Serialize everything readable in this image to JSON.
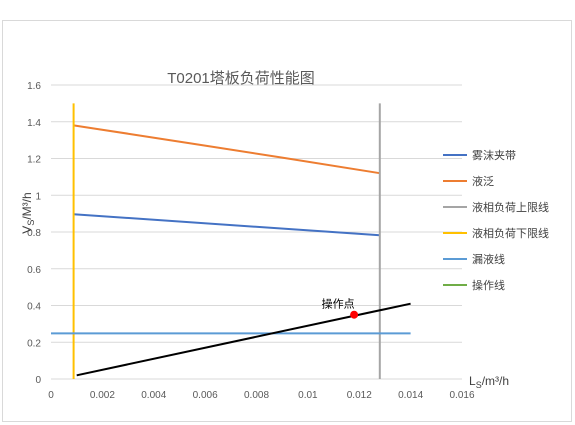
{
  "chart_data": {
    "type": "line",
    "title": "T0201塔板负荷性能图",
    "xlabel": {
      "main": "L",
      "sub": "S",
      "rest": "/m³/h"
    },
    "ylabel": {
      "main": "V",
      "sub": "S",
      "rest": "/M³/h"
    },
    "xlim": [
      0,
      0.016
    ],
    "ylim": [
      0,
      1.6
    ],
    "x_ticks": [
      "0",
      "0.002",
      "0.004",
      "0.006",
      "0.008",
      "0.01",
      "0.012",
      "0.014",
      "0.016"
    ],
    "y_ticks": [
      "0",
      "0.2",
      "0.4",
      "0.6",
      "0.8",
      "1",
      "1.2",
      "1.4",
      "1.6"
    ],
    "grid": "horizontal",
    "legend_position": "right",
    "series": [
      {
        "name": "雾沫夹带",
        "color": "#4472c4",
        "points": [
          [
            0.00088,
            0.897
          ],
          [
            0.0128,
            0.782
          ]
        ]
      },
      {
        "name": "液泛",
        "color": "#ed7d31",
        "points": [
          [
            0.00088,
            1.38
          ],
          [
            0.003,
            1.335
          ],
          [
            0.006,
            1.27
          ],
          [
            0.009,
            1.205
          ],
          [
            0.0128,
            1.12
          ]
        ]
      },
      {
        "name": "液相负荷上限线",
        "color": "#a5a5a5",
        "points": [
          [
            0.0128,
            0
          ],
          [
            0.0128,
            1.5
          ]
        ]
      },
      {
        "name": "液相负荷下限线",
        "color": "#ffc000",
        "points": [
          [
            0.00088,
            0
          ],
          [
            0.00088,
            1.5
          ]
        ]
      },
      {
        "name": "漏液线",
        "color": "#5b9bd5",
        "points": [
          [
            0,
            0.248
          ],
          [
            0.014,
            0.248
          ]
        ]
      },
      {
        "name": "操作线",
        "color": "#70ad47",
        "points": []
      }
    ],
    "operating_line": {
      "color": "#000000",
      "points": [
        [
          0.001,
          0.02
        ],
        [
          0.014,
          0.41
        ]
      ]
    },
    "operating_point": {
      "label": "操作点",
      "x": 0.0118,
      "y": 0.35,
      "color": "#ff0000"
    }
  }
}
